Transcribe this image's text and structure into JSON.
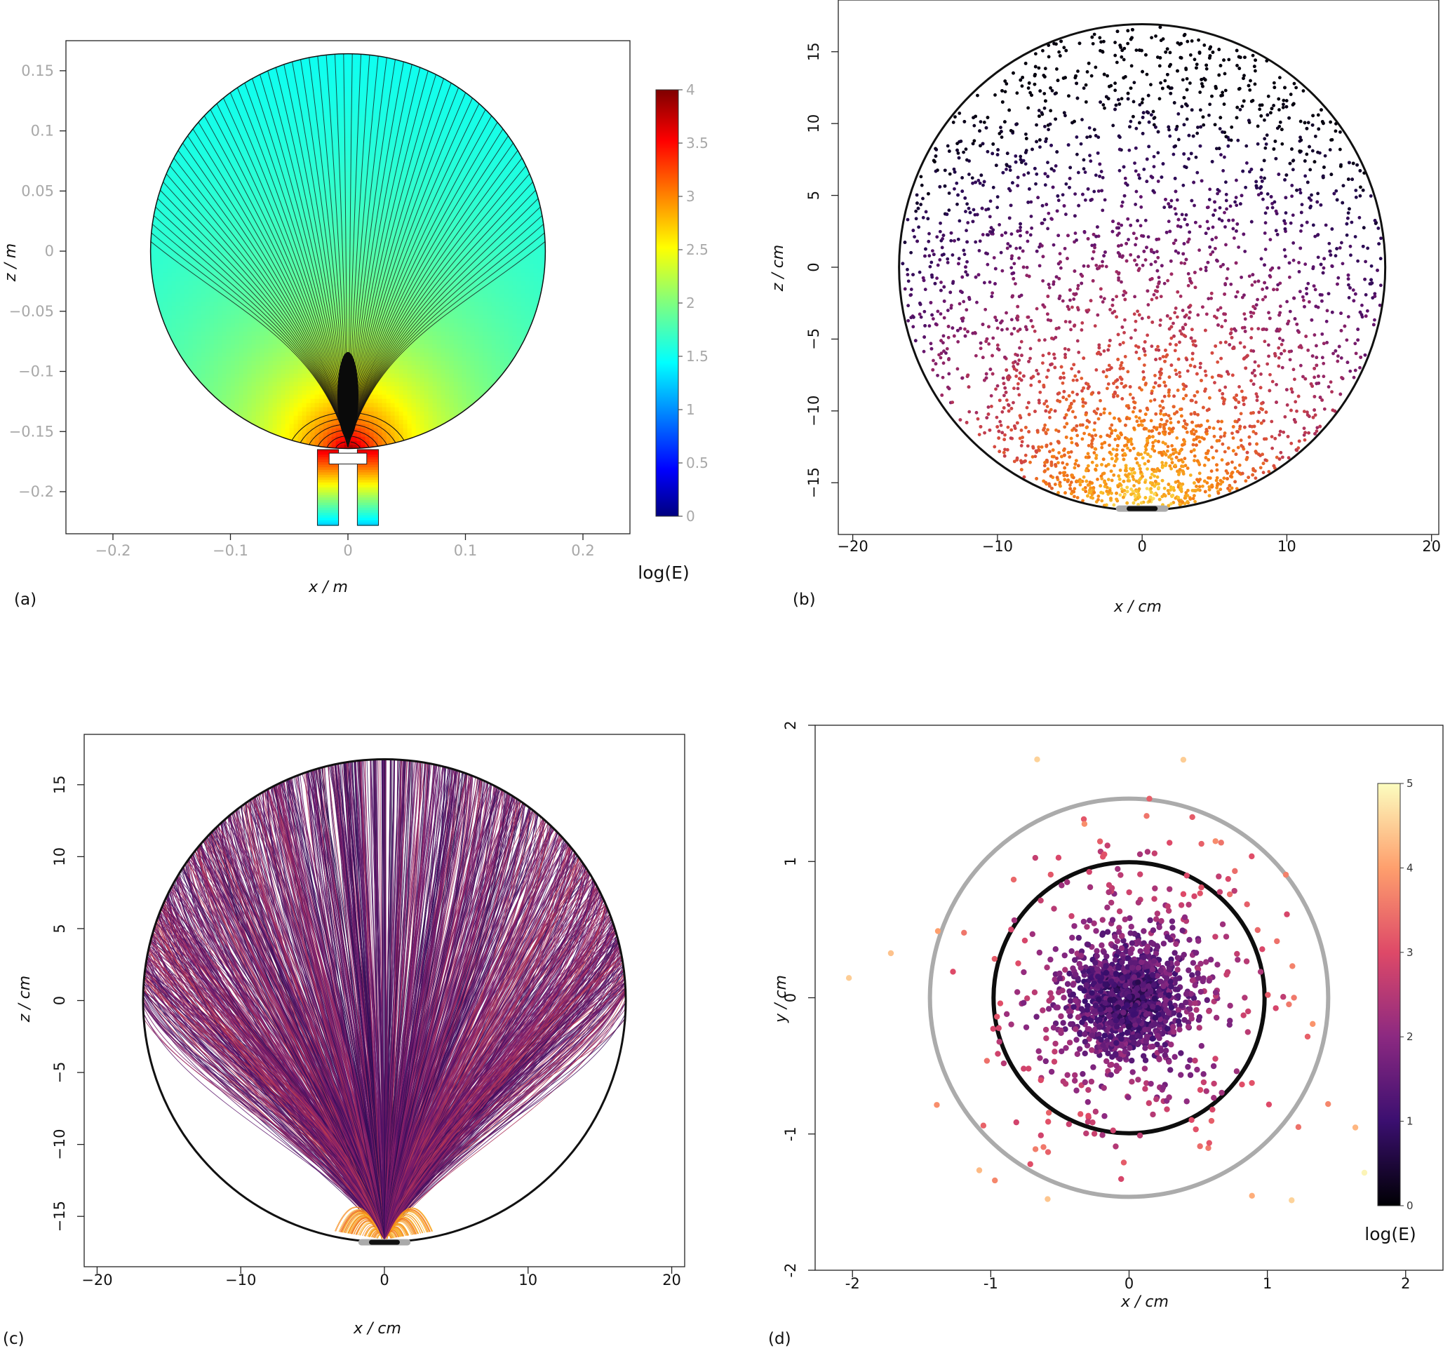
{
  "chart_data": [
    {
      "id": "a",
      "type": "heatmap",
      "panel_label": "(a)",
      "xlabel": "x / m",
      "ylabel": "z / m",
      "xticks": [
        "−0.2",
        "−0.1",
        "0",
        "0.1",
        "0.2"
      ],
      "xtick_values": [
        -0.2,
        -0.1,
        0,
        0.1,
        0.2
      ],
      "yticks": [
        "−0.2",
        "−0.15",
        "−0.1",
        "−0.05",
        "0",
        "0.05",
        "0.1",
        "0.15"
      ],
      "ytick_values": [
        -0.2,
        -0.15,
        -0.1,
        -0.05,
        0,
        0.05,
        0.1,
        0.15
      ],
      "xlim": [
        -0.24,
        0.24
      ],
      "ylim": [
        -0.235,
        0.175
      ],
      "sphere": {
        "center": [
          0,
          0
        ],
        "radius": 0.168
      },
      "colorbar": {
        "title": "log(E)",
        "min": 0,
        "max": 4,
        "ticks": [
          "0",
          "0.5",
          "1",
          "1.5",
          "2",
          "2.5",
          "3",
          "3.5",
          "4"
        ],
        "tick_values": [
          0,
          0.5,
          1,
          1.5,
          2,
          2.5,
          3,
          3.5,
          4
        ],
        "colormap": "jet"
      },
      "grid": false
    },
    {
      "id": "b",
      "type": "scatter",
      "panel_label": "(b)",
      "xlabel": "x / cm",
      "ylabel": "z / cm",
      "xticks": [
        "−20",
        "−10",
        "0",
        "10",
        "20"
      ],
      "xtick_values": [
        -20,
        -10,
        0,
        10,
        20
      ],
      "yticks": [
        "−15",
        "−10",
        "−5",
        "0",
        "5",
        "10",
        "15"
      ],
      "ytick_values": [
        -15,
        -10,
        -5,
        0,
        5,
        10,
        15
      ],
      "xlim": [
        -21,
        20.5
      ],
      "ylim": [
        -18.6,
        18.6
      ],
      "sphere_radius": 16.8,
      "colormap": "inferno",
      "grid": false
    },
    {
      "id": "c",
      "type": "line",
      "panel_label": "(c)",
      "xlabel": "x / cm",
      "ylabel": "z / cm",
      "xticks": [
        "−20",
        "−10",
        "0",
        "10",
        "20"
      ],
      "xtick_values": [
        -20,
        -10,
        0,
        10,
        20
      ],
      "yticks": [
        "−15",
        "−10",
        "−5",
        "0",
        "5",
        "10",
        "15"
      ],
      "ytick_values": [
        -15,
        -10,
        -5,
        0,
        5,
        10,
        15
      ],
      "xlim": [
        -20.9,
        20.9
      ],
      "ylim": [
        -18.5,
        18.5
      ],
      "sphere_radius": 16.8,
      "colormap": "inferno",
      "grid": false
    },
    {
      "id": "d",
      "type": "scatter",
      "panel_label": "(d)",
      "xlabel": "x / cm",
      "ylabel": "y / cm",
      "xticks": [
        "-2",
        "-1",
        "0",
        "1",
        "2"
      ],
      "xtick_values": [
        -2,
        -1,
        0,
        1,
        2
      ],
      "yticks": [
        "-2",
        "-1",
        "0",
        "1",
        "2"
      ],
      "ytick_values": [
        -2,
        -1,
        0,
        1,
        2
      ],
      "xlim": [
        -2.27,
        2.27
      ],
      "ylim": [
        -2,
        2
      ],
      "inner_circle_radius": 0.98,
      "outer_circle_radius": 1.44,
      "colorbar": {
        "title": "log(E)",
        "min": 0,
        "max": 5,
        "ticks": [
          "0",
          "1",
          "2",
          "3",
          "4",
          "5"
        ],
        "tick_values": [
          0,
          1,
          2,
          3,
          4,
          5
        ],
        "colormap": "magma"
      },
      "grid": false
    }
  ]
}
